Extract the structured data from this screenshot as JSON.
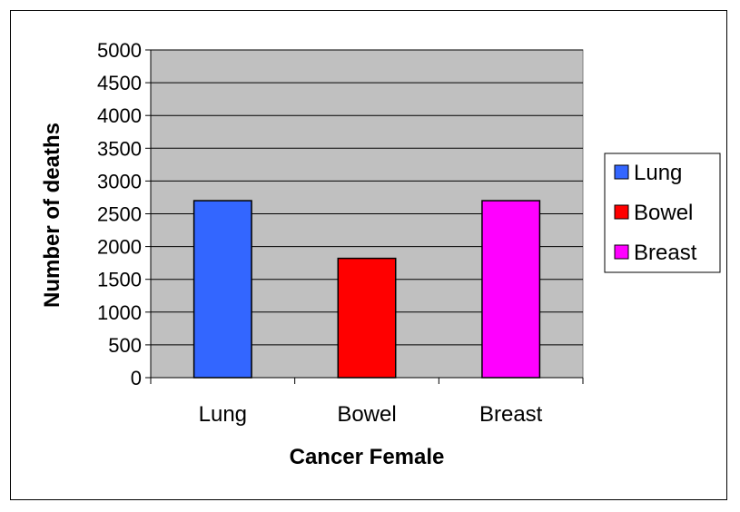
{
  "chart_data": {
    "type": "bar",
    "categories": [
      "Lung",
      "Bowel",
      "Breast"
    ],
    "values": [
      2700,
      1820,
      2700
    ],
    "colors": [
      "#3366ff",
      "#ff0000",
      "#ff00ff"
    ],
    "xlabel": "Cancer Female",
    "ylabel": "Number of deaths",
    "ylim": [
      0,
      5000
    ],
    "ytick_step": 500,
    "yticks": [
      "0",
      "500",
      "1000",
      "1500",
      "2000",
      "2500",
      "3000",
      "3500",
      "4000",
      "4500",
      "5000"
    ],
    "grid": true,
    "plot_background": "#c0c0c0",
    "legend": {
      "placement": "right",
      "entries": [
        "Lung",
        "Bowel",
        "Breast"
      ]
    }
  }
}
